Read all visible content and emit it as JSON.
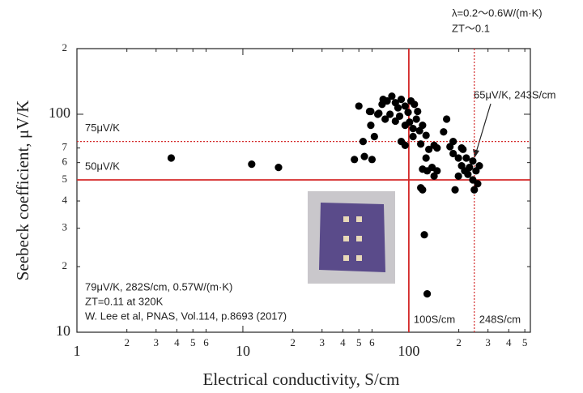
{
  "chart_data": {
    "type": "scatter",
    "x_label": "Electrical conductivity, S/cm",
    "y_label": "Seebeck coefficient, μV/K",
    "xlog": true,
    "ylog": true,
    "xlim": [
      1,
      540
    ],
    "ylim": [
      10,
      200
    ],
    "xticks": [
      1,
      2,
      3,
      4,
      5,
      6,
      10,
      {
        "value": 20,
        "label": "2"
      },
      {
        "value": 30,
        "label": "3"
      },
      {
        "value": 40,
        "label": "4"
      },
      {
        "value": 50,
        "label": "5"
      },
      {
        "value": 60,
        "label": "6"
      },
      100,
      {
        "value": 200,
        "label": "2"
      },
      {
        "value": 300,
        "label": "3"
      },
      {
        "value": 400,
        "label": "4"
      },
      {
        "value": 500,
        "label": "5"
      }
    ],
    "yticks": [
      10,
      {
        "value": 20,
        "label": "2"
      },
      {
        "value": 30,
        "label": "3"
      },
      {
        "value": 40,
        "label": "4"
      },
      {
        "value": 50,
        "label": "5"
      },
      {
        "value": 60,
        "label": "6"
      },
      {
        "value": 70,
        "label": "7"
      },
      100,
      {
        "value": 200,
        "label": "2"
      }
    ],
    "marker_color": "#000000",
    "x": [
      3.7,
      11.3,
      16.4,
      47,
      53,
      54,
      60,
      59,
      58,
      66,
      70,
      50,
      59,
      65,
      69,
      74,
      79,
      83,
      86,
      90,
      95,
      99,
      103,
      108,
      113,
      72,
      77,
      83,
      88,
      95,
      101,
      106,
      111,
      116,
      121,
      62,
      90,
      95,
      106,
      118,
      127,
      132,
      142,
      148,
      162,
      169,
      177,
      185,
      199,
      212,
      222,
      232,
      243,
      208,
      217,
      227,
      243,
      254,
      266,
      260,
      199,
      121,
      129,
      138,
      142,
      190,
      248,
      208,
      185,
      118,
      121,
      124,
      129,
      127,
      148
    ],
    "y": [
      63,
      59,
      57,
      62,
      75,
      64,
      62,
      89,
      103,
      101,
      117,
      109,
      103,
      100,
      111,
      115,
      121,
      113,
      107,
      117,
      109,
      102,
      115,
      111,
      103,
      95,
      100,
      93,
      98,
      89,
      92,
      86,
      95,
      84,
      89,
      79,
      75,
      72,
      79,
      73,
      80,
      69,
      72,
      70,
      83,
      95,
      71,
      66,
      63,
      69,
      63,
      57,
      61,
      58,
      55,
      53,
      50,
      55,
      58,
      48,
      52,
      56,
      55,
      57,
      52,
      45,
      45,
      70,
      75,
      46,
      45,
      28,
      15,
      63,
      55
    ],
    "reference_lines": [
      {
        "axis": "y",
        "value": 75,
        "label": "75μV/K",
        "style": "dotted",
        "color": "#d42a2a"
      },
      {
        "axis": "y",
        "value": 50,
        "label": "50μV/K",
        "style": "solid",
        "color": "#d42a2a"
      },
      {
        "axis": "x",
        "value": 100,
        "label": "100S/cm",
        "style": "solid",
        "color": "#d42a2a"
      },
      {
        "axis": "x",
        "value": 248,
        "label": "248S/cm",
        "style": "dotted",
        "color": "#d42a2a"
      }
    ],
    "callout": "65μV/K, 243S/cm",
    "header_notes": [
      "λ=0.2〜0.6W/(m·K)",
      "ZT〜0.1"
    ],
    "notes": [
      "79μV/K, 282S/cm, 0.57W/(m·K)",
      "ZT=0.11 at 320K",
      "W. Lee et al, PNAS, Vol.114, p.8693 (2017)"
    ]
  }
}
